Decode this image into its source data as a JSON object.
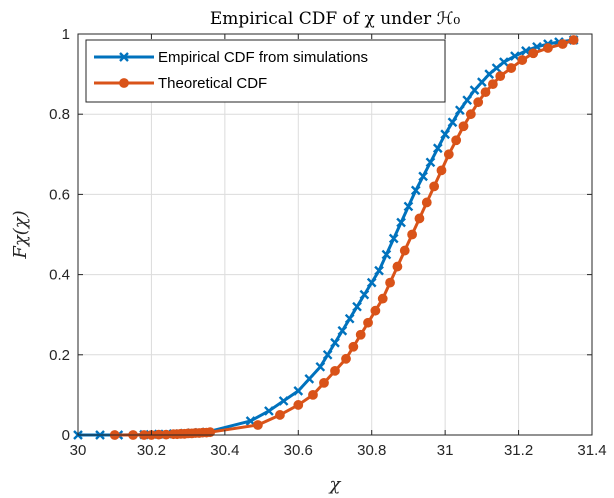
{
  "chart_data": {
    "type": "line",
    "title": "Empirical CDF of χ under ℋ₀",
    "xlabel": "χ",
    "ylabel": "Fχ(χ)",
    "xlim": [
      30,
      31.4
    ],
    "ylim": [
      0,
      1
    ],
    "xticks": [
      "30",
      "30.2",
      "30.4",
      "30.6",
      "30.8",
      "31",
      "31.2",
      "31.4"
    ],
    "yticks": [
      "0",
      "0.2",
      "0.4",
      "0.6",
      "0.8",
      "1"
    ],
    "grid": true,
    "legend_position": "top-left",
    "series": [
      {
        "name": "Empirical CDF from simulations",
        "color": "#0072BD",
        "marker": "x",
        "x": [
          30.0,
          30.06,
          30.11,
          30.18,
          30.22,
          30.26,
          30.29,
          30.31,
          30.33,
          30.35,
          30.47,
          30.52,
          30.56,
          30.6,
          30.63,
          30.66,
          30.68,
          30.7,
          30.72,
          30.74,
          30.76,
          30.78,
          30.8,
          30.82,
          30.84,
          30.86,
          30.88,
          30.9,
          30.92,
          30.94,
          30.96,
          30.98,
          31.0,
          31.02,
          31.04,
          31.06,
          31.08,
          31.1,
          31.12,
          31.14,
          31.16,
          31.19,
          31.22,
          31.25,
          31.28,
          31.31,
          31.35
        ],
        "y": [
          0.0,
          0.0,
          0.0,
          0.001,
          0.002,
          0.003,
          0.004,
          0.005,
          0.006,
          0.007,
          0.035,
          0.06,
          0.085,
          0.11,
          0.14,
          0.17,
          0.2,
          0.23,
          0.26,
          0.29,
          0.32,
          0.35,
          0.38,
          0.41,
          0.45,
          0.49,
          0.53,
          0.57,
          0.61,
          0.645,
          0.68,
          0.715,
          0.75,
          0.78,
          0.81,
          0.835,
          0.86,
          0.88,
          0.9,
          0.915,
          0.93,
          0.945,
          0.958,
          0.968,
          0.975,
          0.98,
          0.985
        ]
      },
      {
        "name": "Theoretical CDF",
        "color": "#D95319",
        "marker": "o",
        "x": [
          30.1,
          30.15,
          30.18,
          30.2,
          30.22,
          30.24,
          30.26,
          30.27,
          30.28,
          30.29,
          30.3,
          30.31,
          30.32,
          30.33,
          30.34,
          30.35,
          30.36,
          30.49,
          30.55,
          30.6,
          30.64,
          30.67,
          30.7,
          30.73,
          30.75,
          30.77,
          30.79,
          30.81,
          30.83,
          30.85,
          30.87,
          30.89,
          30.91,
          30.93,
          30.95,
          30.97,
          30.99,
          31.01,
          31.03,
          31.05,
          31.07,
          31.09,
          31.11,
          31.13,
          31.15,
          31.18,
          31.21,
          31.24,
          31.28,
          31.32,
          31.35
        ],
        "y": [
          0.0,
          0.0,
          0.0,
          0.0,
          0.001,
          0.001,
          0.002,
          0.002,
          0.003,
          0.003,
          0.004,
          0.004,
          0.005,
          0.005,
          0.006,
          0.006,
          0.007,
          0.025,
          0.05,
          0.075,
          0.1,
          0.13,
          0.16,
          0.19,
          0.22,
          0.25,
          0.28,
          0.31,
          0.34,
          0.38,
          0.42,
          0.46,
          0.5,
          0.54,
          0.58,
          0.62,
          0.66,
          0.7,
          0.735,
          0.77,
          0.8,
          0.83,
          0.855,
          0.875,
          0.895,
          0.915,
          0.935,
          0.952,
          0.965,
          0.975,
          0.985
        ]
      }
    ]
  }
}
